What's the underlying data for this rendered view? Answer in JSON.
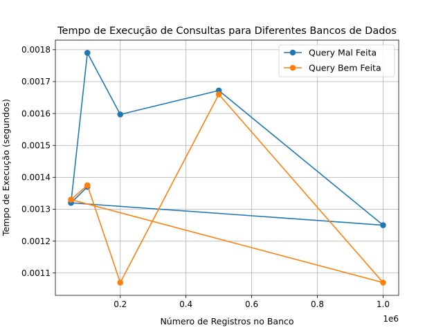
{
  "chart_data": {
    "type": "line",
    "title": "Tempo de Execução de Consultas para Diferentes Bancos de Dados",
    "xlabel": "Número de Registros no Banco",
    "ylabel": "Tempo de Execução (segundos)",
    "x_offset_label": "1e6",
    "xlim": [
      2500,
      1047500
    ],
    "ylim": [
      0.00103,
      0.00183
    ],
    "x_ticks": [
      {
        "value": 200000,
        "label": "0.2"
      },
      {
        "value": 400000,
        "label": "0.4"
      },
      {
        "value": 600000,
        "label": "0.6"
      },
      {
        "value": 800000,
        "label": "0.8"
      },
      {
        "value": 1000000,
        "label": "1.0"
      }
    ],
    "y_ticks": [
      {
        "value": 0.0011,
        "label": "0.0011"
      },
      {
        "value": 0.0012,
        "label": "0.0012"
      },
      {
        "value": 0.0013,
        "label": "0.0013"
      },
      {
        "value": 0.0014,
        "label": "0.0014"
      },
      {
        "value": 0.0015,
        "label": "0.0015"
      },
      {
        "value": 0.0016,
        "label": "0.0016"
      },
      {
        "value": 0.0017,
        "label": "0.0017"
      },
      {
        "value": 0.0018,
        "label": "0.0018"
      }
    ],
    "grid": true,
    "legend_position": "top-right",
    "series": [
      {
        "name": "Query Mal Feita",
        "color": "#1f77b4",
        "x": [
          50000,
          100000,
          200000,
          500000,
          1000000,
          50000,
          100000
        ],
        "y": [
          0.00132,
          0.00179,
          0.001597,
          0.001672,
          0.00125,
          0.00132,
          0.00137
        ]
      },
      {
        "name": "Query Bem Feita",
        "color": "#ff7f0e",
        "x": [
          50000,
          100000,
          200000,
          500000,
          1000000,
          50000,
          100000
        ],
        "y": [
          0.00133,
          0.001375,
          0.00107,
          0.00166,
          0.00107,
          0.00133,
          0.001375
        ]
      }
    ]
  }
}
